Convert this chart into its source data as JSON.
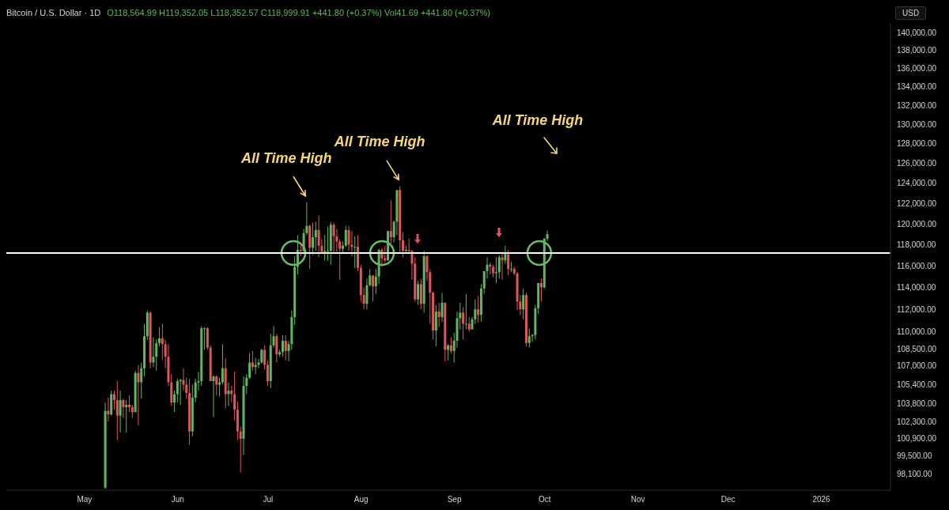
{
  "chart_data": {
    "type": "candlestick",
    "title": "Bitcoin / U.S. Dollar · 1D",
    "subtitle": "O118,564.99 H119,352.05 L118,352.57 C118,999.91 +441.80 (+0.37%) Vol41.69 +441.80 (+0.37%)",
    "ylabel": "USD",
    "log": "y",
    "xlim": [
      "2025-04-05",
      "2026-01-24"
    ],
    "xticks": [
      {
        "value": "2025-05-01",
        "label": "May"
      },
      {
        "value": "2025-06-01",
        "label": "Jun"
      },
      {
        "value": "2025-07-01",
        "label": "Jul"
      },
      {
        "value": "2025-08-01",
        "label": "Aug"
      },
      {
        "value": "2025-09-01",
        "label": "Sep"
      },
      {
        "value": "2025-10-01",
        "label": "Oct"
      },
      {
        "value": "2025-11-01",
        "label": "Nov"
      },
      {
        "value": "2025-12-01",
        "label": "Dec"
      },
      {
        "value": "2026-01-01",
        "label": "2026"
      }
    ],
    "ylim": [
      96800,
      141000
    ],
    "yticks": [
      {
        "value": 98100,
        "label": "98,100.00"
      },
      {
        "value": 99500,
        "label": "99,500.00"
      },
      {
        "value": 100900,
        "label": "100,900.00"
      },
      {
        "value": 102300,
        "label": "102,300.00"
      },
      {
        "value": 103800,
        "label": "103,800.00"
      },
      {
        "value": 105400,
        "label": "105,400.00"
      },
      {
        "value": 107000,
        "label": "107,000.00"
      },
      {
        "value": 108500,
        "label": "108,500.00"
      },
      {
        "value": 110000,
        "label": "110,000.00"
      },
      {
        "value": 112000,
        "label": "112,000.00"
      },
      {
        "value": 114000,
        "label": "114,000.00"
      },
      {
        "value": 116000,
        "label": "116,000.00"
      },
      {
        "value": 118000,
        "label": "118,000.00"
      },
      {
        "value": 120000,
        "label": "120,000.00"
      },
      {
        "value": 122000,
        "label": "122,000.00"
      },
      {
        "value": 124000,
        "label": "124,000.00"
      },
      {
        "value": 126000,
        "label": "126,000.00"
      },
      {
        "value": 128000,
        "label": "128,000.00"
      },
      {
        "value": 130000,
        "label": "130,000.00"
      },
      {
        "value": 132000,
        "label": "132,000.00"
      },
      {
        "value": 134000,
        "label": "134,000.00"
      },
      {
        "value": 136000,
        "label": "136,000.00"
      },
      {
        "value": 138000,
        "label": "138,000.00"
      },
      {
        "value": 140000,
        "label": "140,000.00"
      }
    ],
    "ref_lines": [
      {
        "axis": "y",
        "value": 117200,
        "color": "#ffffff"
      }
    ],
    "annotations": [
      {
        "text": "All Time High",
        "x": "2025-07-14",
        "y": 122100
      },
      {
        "text": "All Time High",
        "x": "2025-08-14",
        "y": 123700
      },
      "All Time High"
    ],
    "x": [
      "2025-05-08",
      "2025-05-09",
      "2025-05-10",
      "2025-05-11",
      "2025-05-12",
      "2025-05-13",
      "2025-05-14",
      "2025-05-15",
      "2025-05-16",
      "2025-05-17",
      "2025-05-18",
      "2025-05-19",
      "2025-05-20",
      "2025-05-21",
      "2025-05-22",
      "2025-05-23",
      "2025-05-24",
      "2025-05-25",
      "2025-05-26",
      "2025-05-27",
      "2025-05-28",
      "2025-05-29",
      "2025-05-30",
      "2025-05-31",
      "2025-06-01",
      "2025-06-02",
      "2025-06-03",
      "2025-06-04",
      "2025-06-05",
      "2025-06-06",
      "2025-06-07",
      "2025-06-08",
      "2025-06-09",
      "2025-06-10",
      "2025-06-11",
      "2025-06-12",
      "2025-06-13",
      "2025-06-14",
      "2025-06-15",
      "2025-06-16",
      "2025-06-17",
      "2025-06-18",
      "2025-06-19",
      "2025-06-20",
      "2025-06-21",
      "2025-06-22",
      "2025-06-23",
      "2025-06-24",
      "2025-06-25",
      "2025-06-26",
      "2025-06-27",
      "2025-06-28",
      "2025-06-29",
      "2025-06-30",
      "2025-07-01",
      "2025-07-02",
      "2025-07-03",
      "2025-07-04",
      "2025-07-05",
      "2025-07-06",
      "2025-07-07",
      "2025-07-08",
      "2025-07-09",
      "2025-07-10",
      "2025-07-11",
      "2025-07-12",
      "2025-07-13",
      "2025-07-14",
      "2025-07-15",
      "2025-07-16",
      "2025-07-17",
      "2025-07-18",
      "2025-07-19",
      "2025-07-20",
      "2025-07-21",
      "2025-07-22",
      "2025-07-23",
      "2025-07-24",
      "2025-07-25",
      "2025-07-26",
      "2025-07-27",
      "2025-07-28",
      "2025-07-29",
      "2025-07-30",
      "2025-07-31",
      "2025-08-01",
      "2025-08-02",
      "2025-08-03",
      "2025-08-04",
      "2025-08-05",
      "2025-08-06",
      "2025-08-07",
      "2025-08-08",
      "2025-08-09",
      "2025-08-10",
      "2025-08-11",
      "2025-08-12",
      "2025-08-13",
      "2025-08-14",
      "2025-08-15",
      "2025-08-16",
      "2025-08-17",
      "2025-08-18",
      "2025-08-19",
      "2025-08-20",
      "2025-08-21",
      "2025-08-22",
      "2025-08-23",
      "2025-08-24",
      "2025-08-25",
      "2025-08-26",
      "2025-08-27",
      "2025-08-28",
      "2025-08-29",
      "2025-08-30",
      "2025-08-31",
      "2025-09-01",
      "2025-09-02",
      "2025-09-03",
      "2025-09-04",
      "2025-09-05",
      "2025-09-06",
      "2025-09-07",
      "2025-09-08",
      "2025-09-09",
      "2025-09-10",
      "2025-09-11",
      "2025-09-12",
      "2025-09-13",
      "2025-09-14",
      "2025-09-15",
      "2025-09-16",
      "2025-09-17",
      "2025-09-18",
      "2025-09-19",
      "2025-09-20",
      "2025-09-21",
      "2025-09-22",
      "2025-09-23",
      "2025-09-24",
      "2025-09-25",
      "2025-09-26",
      "2025-09-27",
      "2025-09-28",
      "2025-09-29",
      "2025-09-30",
      "2025-10-01",
      "2025-10-02"
    ],
    "ohlc": [
      [
        97000,
        103900,
        96900,
        103200
      ],
      [
        103200,
        104300,
        102300,
        102900
      ],
      [
        102900,
        104900,
        102800,
        104600
      ],
      [
        104600,
        104900,
        103300,
        104100
      ],
      [
        104100,
        105700,
        100800,
        102800
      ],
      [
        102800,
        104900,
        101400,
        104100
      ],
      [
        104100,
        104200,
        102600,
        103500
      ],
      [
        103500,
        104100,
        101400,
        103700
      ],
      [
        103700,
        104500,
        103100,
        103500
      ],
      [
        103500,
        103700,
        102600,
        103100
      ],
      [
        103100,
        106600,
        103100,
        106400
      ],
      [
        106400,
        107100,
        102000,
        105600
      ],
      [
        105600,
        107300,
        104200,
        106800
      ],
      [
        106800,
        110700,
        106100,
        109600
      ],
      [
        109600,
        111900,
        109300,
        111700
      ],
      [
        111700,
        111800,
        106800,
        107300
      ],
      [
        107300,
        109500,
        106900,
        107800
      ],
      [
        107800,
        109300,
        106600,
        109000
      ],
      [
        109000,
        110400,
        108700,
        109400
      ],
      [
        109400,
        110700,
        107500,
        108900
      ],
      [
        108900,
        109300,
        106800,
        107800
      ],
      [
        107800,
        108900,
        105300,
        105600
      ],
      [
        105600,
        106300,
        103600,
        103900
      ],
      [
        103900,
        104900,
        103100,
        104600
      ],
      [
        104600,
        105900,
        103900,
        105700
      ],
      [
        105700,
        105900,
        103700,
        105800
      ],
      [
        105800,
        106800,
        104900,
        105400
      ],
      [
        105400,
        106000,
        104200,
        104700
      ],
      [
        104700,
        105900,
        100400,
        101500
      ],
      [
        101500,
        105400,
        101100,
        104300
      ],
      [
        104300,
        105900,
        103900,
        105600
      ],
      [
        105600,
        106500,
        104900,
        105700
      ],
      [
        105700,
        110500,
        105300,
        110300
      ],
      [
        110300,
        110400,
        108400,
        110300
      ],
      [
        110300,
        110400,
        108400,
        108600
      ],
      [
        108600,
        108800,
        105700,
        105700
      ],
      [
        105700,
        106200,
        102700,
        106100
      ],
      [
        106100,
        106200,
        104500,
        105400
      ],
      [
        105400,
        106000,
        104400,
        105600
      ],
      [
        105600,
        108900,
        105400,
        106800
      ],
      [
        106800,
        107700,
        103400,
        104600
      ],
      [
        104600,
        105600,
        103600,
        104900
      ],
      [
        104900,
        105300,
        103900,
        104600
      ],
      [
        104600,
        106500,
        102400,
        103300
      ],
      [
        103300,
        104000,
        100800,
        101500
      ],
      [
        101500,
        101900,
        98200,
        100900
      ],
      [
        100900,
        106100,
        99600,
        105300
      ],
      [
        105300,
        106300,
        104600,
        106000
      ],
      [
        106000,
        108100,
        105900,
        107300
      ],
      [
        107300,
        108300,
        106600,
        106900
      ],
      [
        106900,
        107700,
        106300,
        107100
      ],
      [
        107100,
        107600,
        106800,
        107300
      ],
      [
        107300,
        108500,
        107200,
        108400
      ],
      [
        108400,
        108800,
        106700,
        107100
      ],
      [
        107100,
        107500,
        105300,
        105700
      ],
      [
        105700,
        109800,
        105100,
        108800
      ],
      [
        108800,
        110500,
        108600,
        109600
      ],
      [
        109600,
        109800,
        107300,
        108000
      ],
      [
        108000,
        108400,
        107800,
        108200
      ],
      [
        108200,
        109700,
        107800,
        109200
      ],
      [
        109200,
        109700,
        107500,
        108300
      ],
      [
        108300,
        109200,
        107400,
        108900
      ],
      [
        108900,
        111900,
        108400,
        111300
      ],
      [
        111300,
        116900,
        110600,
        115900
      ],
      [
        115900,
        118900,
        115200,
        117500
      ],
      [
        117500,
        118200,
        116900,
        117400
      ],
      [
        117400,
        119500,
        117300,
        119100
      ],
      [
        119100,
        122100,
        118900,
        119800
      ],
      [
        119800,
        119900,
        115700,
        117700
      ],
      [
        117700,
        120100,
        117000,
        118700
      ],
      [
        118700,
        120200,
        117400,
        119400
      ],
      [
        119400,
        120800,
        116800,
        117900
      ],
      [
        117900,
        118500,
        117300,
        117300
      ],
      [
        117300,
        118900,
        116500,
        117400
      ],
      [
        117400,
        119700,
        116500,
        117400
      ],
      [
        117400,
        120200,
        116100,
        119900
      ],
      [
        119900,
        120100,
        117300,
        118800
      ],
      [
        118800,
        119500,
        117300,
        118300
      ],
      [
        118300,
        118500,
        114700,
        117600
      ],
      [
        117600,
        118300,
        117200,
        117900
      ],
      [
        117900,
        119800,
        117800,
        119400
      ],
      [
        119400,
        119800,
        117400,
        118000
      ],
      [
        118000,
        119300,
        116900,
        117800
      ],
      [
        117800,
        118800,
        115800,
        117800
      ],
      [
        117800,
        118900,
        115500,
        115800
      ],
      [
        115800,
        116100,
        112700,
        113300
      ],
      [
        113300,
        114000,
        112000,
        112500
      ],
      [
        112500,
        114800,
        112000,
        114200
      ],
      [
        114200,
        115700,
        114100,
        115100
      ],
      [
        115100,
        115100,
        112700,
        114100
      ],
      [
        114100,
        115700,
        113400,
        115000
      ],
      [
        115000,
        117600,
        114300,
        117500
      ],
      [
        117500,
        117700,
        115900,
        116700
      ],
      [
        116700,
        117900,
        116300,
        116500
      ],
      [
        116500,
        119300,
        116500,
        119300
      ],
      [
        119300,
        122300,
        118100,
        118700
      ],
      [
        118700,
        120300,
        118200,
        120200
      ],
      [
        120200,
        123300,
        118900,
        123300
      ],
      [
        123300,
        123700,
        117200,
        118400
      ],
      [
        118400,
        119200,
        116800,
        117400
      ],
      [
        117400,
        117900,
        117200,
        117500
      ],
      [
        117500,
        118600,
        117200,
        117400
      ],
      [
        117400,
        117500,
        114700,
        116200
      ],
      [
        116200,
        116800,
        112700,
        112900
      ],
      [
        112900,
        114600,
        112400,
        114300
      ],
      [
        114300,
        114800,
        112000,
        112500
      ],
      [
        112500,
        117400,
        111700,
        116900
      ],
      [
        116900,
        117000,
        114600,
        115400
      ],
      [
        115400,
        115700,
        110700,
        113500
      ],
      [
        113500,
        113600,
        109300,
        110100
      ],
      [
        110100,
        112400,
        108700,
        111800
      ],
      [
        111800,
        112600,
        110400,
        111300
      ],
      [
        111300,
        113500,
        110900,
        112600
      ],
      [
        112600,
        112600,
        107400,
        108400
      ],
      [
        108400,
        108900,
        107500,
        108800
      ],
      [
        108800,
        109500,
        108100,
        108300
      ],
      [
        108300,
        109900,
        107300,
        109200
      ],
      [
        109200,
        111800,
        108600,
        111200
      ],
      [
        111200,
        112600,
        110200,
        111700
      ],
      [
        111700,
        112200,
        109300,
        110700
      ],
      [
        110700,
        113400,
        110200,
        110700
      ],
      [
        110700,
        111300,
        110000,
        110200
      ],
      [
        110200,
        111300,
        110200,
        111100
      ],
      [
        111100,
        112900,
        110700,
        112000
      ],
      [
        112000,
        113200,
        110800,
        111500
      ],
      [
        111500,
        114300,
        110900,
        113900
      ],
      [
        113900,
        115500,
        113400,
        115500
      ],
      [
        115500,
        116800,
        114800,
        116100
      ],
      [
        116100,
        116300,
        115200,
        115900
      ],
      [
        115900,
        116100,
        114900,
        115300
      ],
      [
        115300,
        116800,
        114400,
        115400
      ],
      [
        115400,
        117000,
        114800,
        116800
      ],
      [
        116800,
        117300,
        114700,
        116500
      ],
      [
        116500,
        117900,
        116200,
        117100
      ],
      [
        117100,
        117500,
        115100,
        115700
      ],
      [
        115700,
        116400,
        115400,
        115700
      ],
      [
        115700,
        115900,
        115100,
        115300
      ],
      [
        115300,
        115400,
        111900,
        112700
      ],
      [
        112700,
        113300,
        111500,
        112000
      ],
      [
        112000,
        113900,
        111100,
        113300
      ],
      [
        113300,
        113500,
        108700,
        109000
      ],
      [
        109000,
        110300,
        108600,
        109600
      ],
      [
        109600,
        109800,
        109100,
        109700
      ],
      [
        109700,
        112400,
        109300,
        112100
      ],
      [
        112100,
        114400,
        111600,
        114400
      ],
      [
        114400,
        114800,
        112700,
        114000
      ],
      [
        114000,
        118600,
        113900,
        118564.99
      ],
      [
        118564.99,
        119352.05,
        118352.57,
        118999.91
      ]
    ]
  }
}
